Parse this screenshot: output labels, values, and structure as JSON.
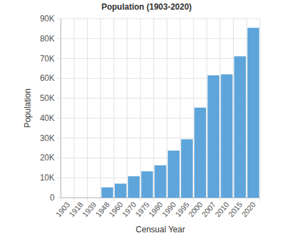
{
  "chart_data": {
    "type": "bar",
    "title": "Population (1903-2020)",
    "x_label": "Censual Year",
    "y_label": "Population",
    "categories": [
      "1903",
      "1918",
      "1939",
      "1948",
      "1960",
      "1970",
      "1975",
      "1980",
      "1990",
      "1995",
      "2000",
      "2007",
      "2010",
      "2015",
      "2020"
    ],
    "values": [
      0,
      0,
      0,
      5200,
      7100,
      10800,
      13300,
      16300,
      23700,
      29400,
      45300,
      61500,
      62000,
      71100,
      85400
    ],
    "color": "#5da5da",
    "ylim": [
      0,
      90000
    ],
    "yticks": [
      0,
      {
        "value": 10000,
        "label": "10K"
      },
      {
        "value": 20000,
        "label": "20K"
      },
      {
        "value": 30000,
        "label": "30K"
      },
      {
        "value": 40000,
        "label": "40K"
      },
      {
        "value": 50000,
        "label": "50K"
      },
      {
        "value": 60000,
        "label": "60K"
      },
      {
        "value": 70000,
        "label": "70K"
      },
      {
        "value": 80000,
        "label": "80K"
      },
      {
        "value": 90000,
        "label": "90K"
      }
    ],
    "grid": true
  }
}
